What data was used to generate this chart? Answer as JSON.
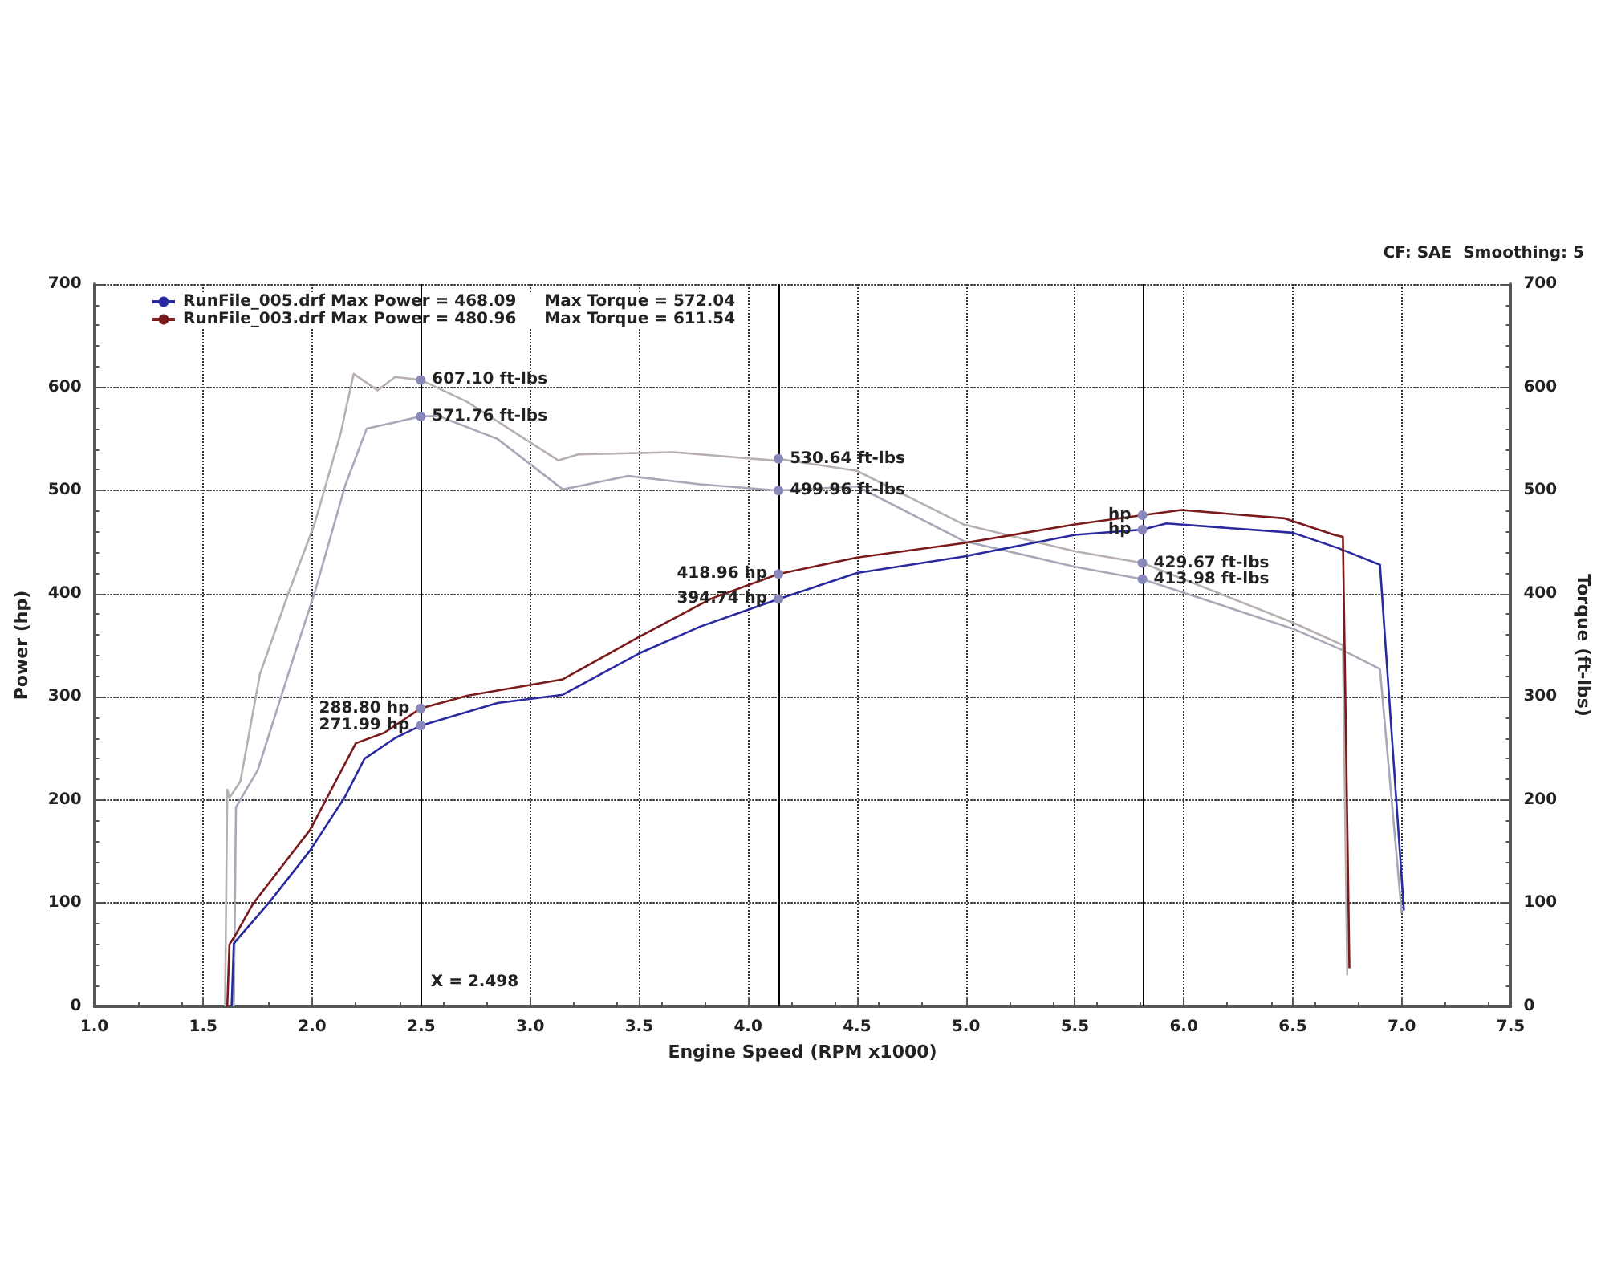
{
  "chart_data": {
    "type": "line",
    "xlabel": "Engine Speed (RPM x1000)",
    "ylabel": "Power (hp)",
    "y2label": "Torque (ft-lbs)",
    "xlim": [
      1,
      7.5
    ],
    "xticks": [
      {
        "value": 1,
        "label": "1.0"
      },
      {
        "value": 1.5,
        "label": "1.5"
      },
      {
        "value": 2,
        "label": "2.0"
      },
      {
        "value": 2.5,
        "label": "2.5"
      },
      {
        "value": 3,
        "label": "3.0"
      },
      {
        "value": 3.5,
        "label": "3.5"
      },
      {
        "value": 4,
        "label": "4.0"
      },
      {
        "value": 4.5,
        "label": "4.5"
      },
      {
        "value": 5,
        "label": "5.0"
      },
      {
        "value": 5.5,
        "label": "5.5"
      },
      {
        "value": 6,
        "label": "6.0"
      },
      {
        "value": 6.5,
        "label": "6.5"
      },
      {
        "value": 7,
        "label": "7.0"
      },
      {
        "value": 7.5,
        "label": "7.5"
      }
    ],
    "ylim": [
      0,
      700
    ],
    "yticks": [
      0,
      100,
      200,
      300,
      400,
      500,
      600,
      700
    ],
    "y2lim": [
      0,
      700
    ],
    "y2ticks": [
      0,
      100,
      200,
      300,
      400,
      500,
      600,
      700
    ],
    "grid": true,
    "legend": "top left",
    "series": [
      {
        "name": "RunFile_005.drf Max Power = 468.09     Max Torque = 572.04",
        "color": "#2a2aa0",
        "x": [
          1.63,
          1.64,
          1.8,
          1.99,
          2.15,
          2.24,
          2.38,
          2.498,
          2.85,
          3.15,
          3.5,
          3.78,
          4.14,
          4.5,
          4.99,
          5.5,
          5.81,
          5.92,
          6.5,
          6.71,
          6.9,
          7.01
        ],
        "values": [
          0,
          61,
          100,
          151,
          203,
          240,
          260,
          271.99,
          294,
          302,
          342,
          368,
          394.74,
          420,
          436,
          457,
          462,
          468,
          459,
          444,
          428,
          93
        ]
      },
      {
        "name": "RunFile_003.drf Max Power = 480.96     Max Torque = 611.54",
        "color": "#7a1a1a",
        "x": [
          1.61,
          1.62,
          1.65,
          1.73,
          1.99,
          2.2,
          2.33,
          2.498,
          2.71,
          3.15,
          3.5,
          3.83,
          4.14,
          4.5,
          4.99,
          5.5,
          5.81,
          5.99,
          6.46,
          6.69,
          6.73,
          6.76
        ],
        "values": [
          0,
          60,
          70,
          100,
          171,
          255,
          265,
          288.8,
          301,
          317,
          358,
          395,
          418.96,
          435,
          449,
          467,
          476,
          481,
          473,
          457,
          455,
          37
        ]
      },
      {
        "color": "#a8a8b8",
        "axis": "y2",
        "x": [
          1.64,
          1.65,
          1.75,
          1.92,
          2.01,
          2.15,
          2.25,
          2.38,
          2.498,
          2.58,
          2.85,
          3.15,
          3.45,
          3.78,
          4.14,
          4.5,
          4.99,
          5.5,
          5.81,
          6.5,
          6.73,
          6.9,
          7.0
        ],
        "values": [
          0,
          193,
          229,
          342,
          400,
          504,
          560,
          566,
          571.76,
          572,
          550,
          501,
          514,
          506,
          499.96,
          504,
          451,
          426,
          413.98,
          366,
          345,
          327,
          90
        ]
      },
      {
        "color": "#b8b0b0",
        "axis": "y2",
        "x": [
          1.6,
          1.61,
          1.62,
          1.67,
          1.76,
          1.89,
          2.01,
          2.13,
          2.19,
          2.3,
          2.38,
          2.498,
          2.71,
          3.13,
          3.22,
          3.66,
          4.12,
          4.14,
          4.5,
          4.99,
          5.5,
          5.81,
          6.5,
          6.73,
          6.75
        ],
        "values": [
          0,
          210,
          202,
          218,
          322,
          400,
          467,
          555,
          613,
          597,
          610,
          607.1,
          586,
          529,
          535,
          537,
          529,
          530.64,
          519,
          467,
          441,
          429.67,
          372,
          350,
          30
        ]
      }
    ],
    "ref_lines": [
      {
        "axis": "x",
        "value": 2.498,
        "label": "X = 2.498",
        "color": "#000000"
      },
      {
        "axis": "x",
        "value": 4.14,
        "label": null,
        "color": "#000000"
      },
      {
        "axis": "x",
        "value": 5.81,
        "label": null,
        "color": "#000000"
      }
    ],
    "annotations": [
      {
        "text": "607.10 ft-lbs",
        "x": 2.498,
        "y": 607.1
      },
      {
        "text": "571.76 ft-lbs",
        "x": 2.498,
        "y": 571.76
      },
      {
        "text": "288.80 hp",
        "x": 2.498,
        "y": 288.8
      },
      {
        "text": "271.99 hp",
        "x": 2.498,
        "y": 271.99
      },
      {
        "text": "530.64 ft-lbs",
        "x": 4.14,
        "y": 530.64
      },
      {
        "text": "499.96 ft-lbs",
        "x": 4.14,
        "y": 499.96
      },
      {
        "text": "418.96 hp",
        "x": 4.14,
        "y": 418.96
      },
      {
        "text": "394.74 hp",
        "x": 4.14,
        "y": 394.74
      },
      {
        "text": "hp",
        "x": 5.81,
        "y": 476
      },
      {
        "text": "hp",
        "x": 5.81,
        "y": 462
      },
      {
        "text": "429.67 ft-lbs",
        "x": 5.81,
        "y": 429.67
      },
      {
        "text": "413.98 ft-lbs",
        "x": 5.81,
        "y": 413.98
      },
      "CF: SAE  Smoothing: 5"
    ]
  }
}
